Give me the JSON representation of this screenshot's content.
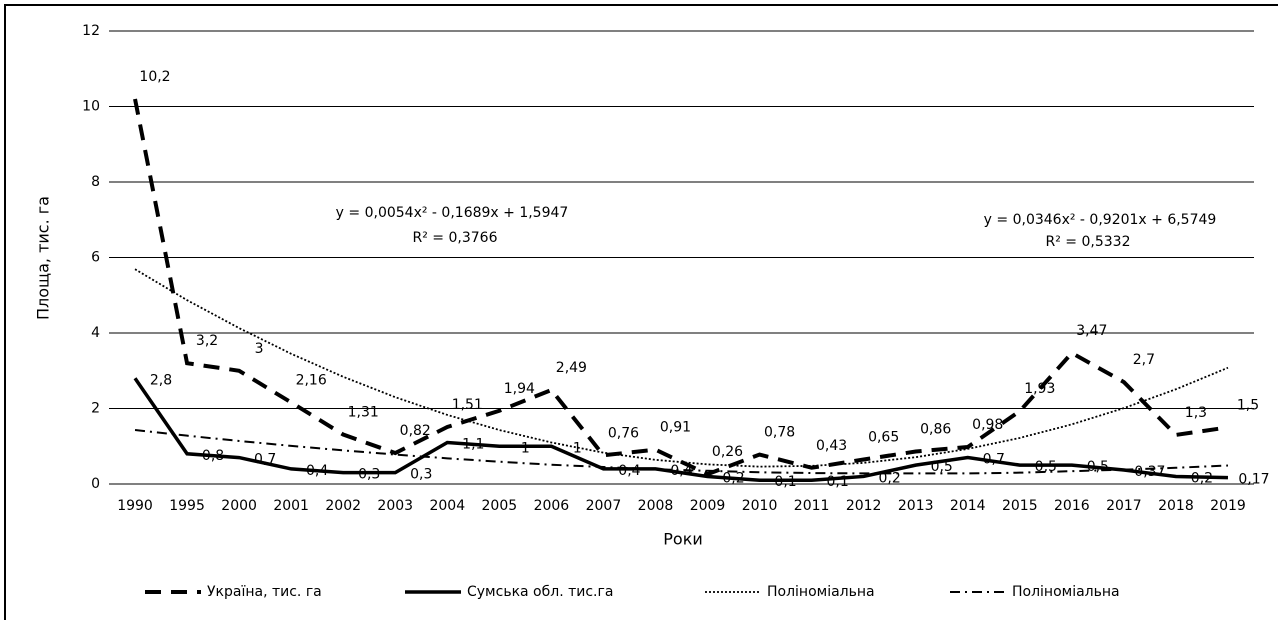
{
  "chart_data": {
    "type": "line",
    "y_label": "Площа, тис. га",
    "x_label": "Роки",
    "categories": [
      "1990",
      "1995",
      "2000",
      "2001",
      "2002",
      "2003",
      "2004",
      "2005",
      "2006",
      "2007",
      "2008",
      "2009",
      "2010",
      "2011",
      "2012",
      "2013",
      "2014",
      "2015",
      "2016",
      "2017",
      "2018",
      "2019"
    ],
    "series": [
      {
        "name": "Україна, тис. га",
        "color": "#000000",
        "style": "dash",
        "values": [
          10.2,
          3.2,
          3,
          2.16,
          1.31,
          0.82,
          1.51,
          1.94,
          2.49,
          0.76,
          0.91,
          0.26,
          0.78,
          0.43,
          0.65,
          0.86,
          0.98,
          1.93,
          3.47,
          2.7,
          1.3,
          1.5
        ],
        "value_labels": [
          "10,2",
          "3,2",
          "3",
          "2,16",
          "1,31",
          "0,82",
          "1,51",
          "1,94",
          "2,49",
          "0,76",
          "0,91",
          "0,26",
          "0,78",
          "0,43",
          "0,65",
          "0,86",
          "0,98",
          "1,93",
          "3,47",
          "2,7",
          "1,3",
          "1,5"
        ]
      },
      {
        "name": "Сумська обл. тис.га",
        "color": "#000000",
        "style": "solid",
        "values": [
          2.8,
          0.8,
          0.7,
          0.4,
          0.3,
          0.3,
          1.1,
          1,
          1,
          0.4,
          0.4,
          0.2,
          0.1,
          0.1,
          0.2,
          0.5,
          0.7,
          0.5,
          0.5,
          0.37,
          0.2,
          0.17
        ],
        "value_labels": [
          "2,8",
          "0,8",
          "0,7",
          "0,4",
          "0,3",
          "0,3",
          "1,1",
          "1",
          "1",
          "0,4",
          "0,4",
          "0,2",
          "0,1",
          "0,1",
          "0,2",
          "0,5",
          "0,7",
          "0,5",
          "0,5",
          "0,37",
          "0,2",
          "0,17"
        ]
      },
      {
        "name": "Поліноміальна",
        "color": "#000000",
        "style": "dot",
        "values": [
          5.69,
          4.87,
          4.13,
          3.45,
          2.84,
          2.3,
          1.83,
          1.43,
          1.1,
          0.83,
          0.64,
          0.52,
          0.46,
          0.48,
          0.56,
          0.71,
          0.93,
          1.22,
          1.58,
          2.01,
          2.51,
          3.08
        ]
      },
      {
        "name": "Поліноміальна",
        "color": "#000000",
        "style": "dashdot",
        "values": [
          1.43,
          1.28,
          1.14,
          1.01,
          0.89,
          0.78,
          0.68,
          0.59,
          0.51,
          0.45,
          0.39,
          0.35,
          0.31,
          0.29,
          0.28,
          0.28,
          0.28,
          0.3,
          0.34,
          0.38,
          0.43,
          0.49
        ]
      }
    ],
    "annotations": [
      "y = 0,0054x² - 0,1689x + 1,5947",
      "R² = 0,3766",
      "y = 0,0346x² - 0,9201x + 6,5749",
      "R² = 0,5332"
    ],
    "ylim": [
      0,
      12
    ],
    "yticks": [
      0,
      2,
      4,
      6,
      8,
      10,
      12
    ],
    "grid": true,
    "legend": "bottom"
  }
}
